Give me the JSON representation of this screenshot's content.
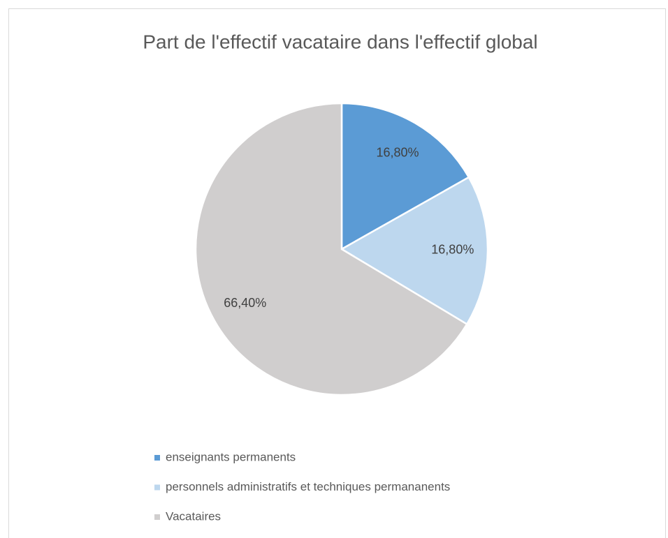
{
  "chart_data": {
    "type": "pie",
    "title": "Part de l'effectif vacataire dans l'effectif global",
    "categories": [
      "enseignants permanents",
      "personnels administratifs et techniques permananents",
      "Vacataires"
    ],
    "values": [
      16.8,
      16.8,
      66.4
    ],
    "value_labels": [
      "16,80%",
      "16,80%",
      "66,40%"
    ],
    "colors": [
      "#5b9bd5",
      "#bdd7ee",
      "#d0cece"
    ],
    "legend": "bottom"
  }
}
